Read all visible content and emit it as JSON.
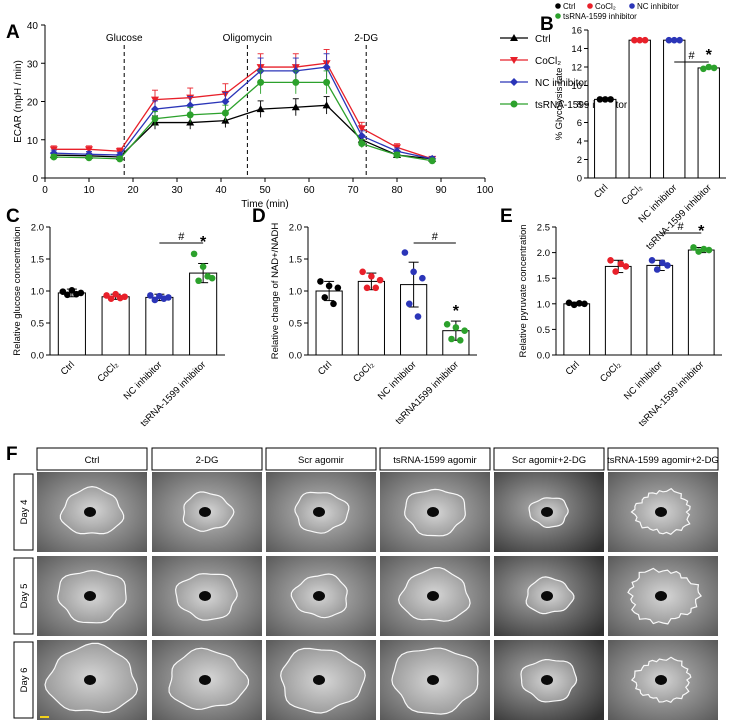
{
  "panel_letters": {
    "a": "A",
    "b": "B",
    "c": "C",
    "d": "D",
    "e": "E",
    "f": "F"
  },
  "colors": {
    "ctrl": "#000000",
    "cocl2": "#e8202a",
    "nc": "#2b35b8",
    "ts": "#2ca12c"
  },
  "chart_data": [
    {
      "type": "line",
      "panel": "A",
      "xlabel": "Time (min)",
      "ylabel": "ECAR (mpH / min)",
      "xlim": [
        0,
        100
      ],
      "ylim": [
        0,
        40
      ],
      "xticks": [
        0,
        10,
        20,
        30,
        40,
        50,
        60,
        70,
        80,
        90,
        100
      ],
      "yticks": [
        0,
        10,
        20,
        30,
        40
      ],
      "annotations": [
        {
          "label": "Glucose",
          "x": 18
        },
        {
          "label": "Oligomycin",
          "x": 46
        },
        {
          "label": "2-DG",
          "x": 73
        }
      ],
      "x": [
        2,
        10,
        17,
        25,
        33,
        41,
        49,
        57,
        64,
        72,
        80,
        88
      ],
      "series": [
        {
          "name": "Ctrl",
          "values": [
            6,
            5.8,
            5.5,
            14.5,
            14.5,
            15,
            18,
            18.5,
            19,
            10,
            6,
            5
          ]
        },
        {
          "name": "CoCl₂",
          "values": [
            7.5,
            7.5,
            7,
            20.5,
            21,
            22,
            29,
            29,
            30,
            13,
            8,
            5
          ]
        },
        {
          "name": "NC inhibitor",
          "values": [
            6.5,
            6.2,
            6,
            18,
            19,
            20,
            28,
            28,
            29,
            11,
            7,
            5
          ]
        },
        {
          "name": "tsRNA-1599 inhibitor",
          "values": [
            5.5,
            5.3,
            5,
            15.5,
            16.5,
            17,
            25,
            25,
            25,
            9,
            6,
            4.5
          ]
        }
      ]
    },
    {
      "type": "bar",
      "panel": "B",
      "ylabel": "% Glycolysis rate",
      "ylim": [
        0,
        16
      ],
      "yticks": [
        0,
        2,
        4,
        6,
        8,
        10,
        12,
        14,
        16
      ],
      "categories": [
        "Ctrl",
        "CoCl₂",
        "NC inhibitor",
        "tsRNA-1599 inhibitor"
      ],
      "values": [
        8.5,
        14.9,
        14.9,
        11.9
      ],
      "significance": [
        "#",
        "*"
      ]
    },
    {
      "type": "bar",
      "panel": "C",
      "ylabel": "Relative glucose concentration",
      "ylim": [
        0,
        2.0
      ],
      "yticks": [
        0.0,
        0.5,
        1.0,
        1.5,
        2.0
      ],
      "categories": [
        "Ctrl",
        "CoCl₂",
        "NC inhibitor",
        "tsRNA-1599 inhibitor"
      ],
      "values": [
        0.97,
        0.91,
        0.9,
        1.28
      ],
      "significance": [
        "#",
        "*"
      ]
    },
    {
      "type": "bar",
      "panel": "D",
      "ylabel": "Relative change of NAD+/NADH",
      "ylim": [
        0,
        2.0
      ],
      "yticks": [
        0.0,
        0.5,
        1.0,
        1.5,
        2.0
      ],
      "categories": [
        "Ctrl",
        "CoCl₂",
        "NC inhibitor",
        "tsRNA1599 inhibitor"
      ],
      "values": [
        1.0,
        1.15,
        1.1,
        0.38
      ],
      "significance": [
        "#",
        "*"
      ]
    },
    {
      "type": "bar",
      "panel": "E",
      "ylabel": "Relative pyruvate concentration",
      "ylim": [
        0,
        2.5
      ],
      "yticks": [
        0.0,
        0.5,
        1.0,
        1.5,
        2.0,
        2.5
      ],
      "categories": [
        "Ctrl",
        "CoCl₂",
        "NC inhibitor",
        "tsRNA-1599 inhibitor"
      ],
      "values": [
        1.0,
        1.73,
        1.75,
        2.05
      ],
      "significance": [
        "#",
        "*"
      ]
    }
  ],
  "panel_f": {
    "columns": [
      "Ctrl",
      "2-DG",
      "Scr agomir",
      "tsRNA-1599 agomir",
      "Scr agomir+2-DG",
      "tsRNA-1599 agomir+2-DG"
    ],
    "rows": [
      "Day 4",
      "Day 5",
      "Day 6"
    ]
  }
}
